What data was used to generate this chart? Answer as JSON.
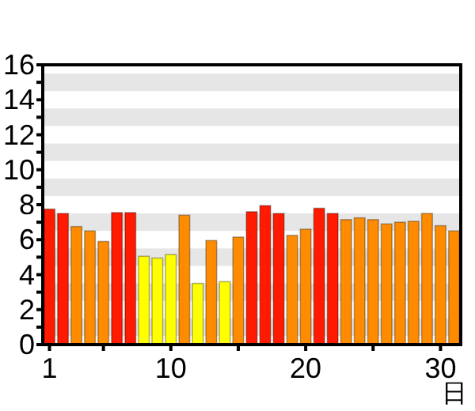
{
  "chart_data": {
    "type": "bar",
    "xlabel": "日",
    "x": [
      1,
      2,
      3,
      4,
      5,
      6,
      7,
      8,
      9,
      10,
      11,
      12,
      13,
      14,
      15,
      16,
      17,
      18,
      19,
      20,
      21,
      22,
      23,
      24,
      25,
      26,
      27,
      28,
      29,
      30,
      31
    ],
    "values": [
      7.75,
      7.5,
      6.75,
      6.5,
      5.9,
      7.55,
      7.55,
      5.05,
      4.95,
      5.15,
      7.4,
      3.5,
      5.95,
      3.6,
      6.15,
      7.6,
      7.95,
      7.5,
      6.25,
      6.6,
      7.8,
      7.5,
      7.15,
      7.25,
      7.15,
      6.9,
      7.0,
      7.05,
      7.5,
      6.8,
      6.5
    ],
    "colors": [
      "#ff1a00",
      "#ff1a00",
      "#ff8c00",
      "#ff8c00",
      "#ff8c00",
      "#ff1a00",
      "#ff1a00",
      "#ffff00",
      "#ffff00",
      "#ffff00",
      "#ff8c00",
      "#ffff00",
      "#ff8c00",
      "#ffff00",
      "#ff8c00",
      "#ff1a00",
      "#ff1a00",
      "#ff1a00",
      "#ff8c00",
      "#ff8c00",
      "#ff1a00",
      "#ff1a00",
      "#ff8c00",
      "#ff8c00",
      "#ff8c00",
      "#ff8c00",
      "#ff8c00",
      "#ff8c00",
      "#ff8c00",
      "#ff8c00",
      "#ff8c00"
    ],
    "xlim": [
      0.5,
      31.5
    ],
    "xticks": [
      1,
      {
        "value": 5,
        "label": null
      },
      10,
      {
        "value": 15,
        "label": null
      },
      20,
      {
        "value": 25,
        "label": null
      },
      30
    ],
    "ylim": [
      0,
      16
    ],
    "yticks": [
      0,
      {
        "value": 1,
        "label": null
      },
      2,
      {
        "value": 3,
        "label": null
      },
      4,
      {
        "value": 5,
        "label": null
      },
      6,
      {
        "value": 7,
        "label": null
      },
      8,
      {
        "value": 9,
        "label": null
      },
      10,
      {
        "value": 11,
        "label": null
      },
      12,
      {
        "value": 13,
        "label": null
      },
      14,
      {
        "value": 15,
        "label": null
      },
      16
    ],
    "bands": [
      {
        "axis": "y",
        "from": 0.5,
        "to": 1.5,
        "color": "#e6e6e6"
      },
      {
        "axis": "y",
        "from": 2.5,
        "to": 3.5,
        "color": "#e6e6e6"
      },
      {
        "axis": "y",
        "from": 4.5,
        "to": 5.5,
        "color": "#e6e6e6"
      },
      {
        "axis": "y",
        "from": 6.5,
        "to": 7.5,
        "color": "#e6e6e6"
      },
      {
        "axis": "y",
        "from": 8.5,
        "to": 9.5,
        "color": "#e6e6e6"
      },
      {
        "axis": "y",
        "from": 10.5,
        "to": 11.5,
        "color": "#e6e6e6"
      },
      {
        "axis": "y",
        "from": 12.5,
        "to": 13.5,
        "color": "#e6e6e6"
      },
      {
        "axis": "y",
        "from": 14.5,
        "to": 15.5,
        "color": "#e6e6e6"
      }
    ]
  }
}
